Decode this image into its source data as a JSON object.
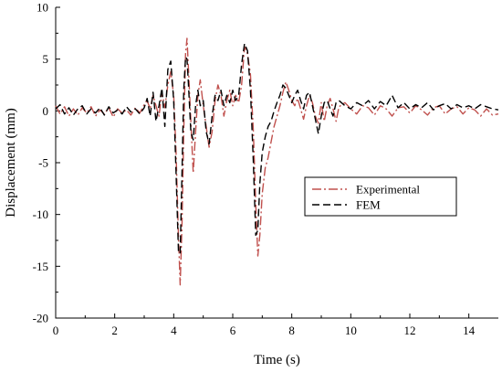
{
  "chart_data": {
    "type": "line",
    "title": "",
    "xlabel": "Time (s)",
    "ylabel": "Displacement (mm)",
    "xlim": [
      0,
      15
    ],
    "ylim": [
      -20,
      10
    ],
    "xticks": [
      0,
      2,
      4,
      6,
      8,
      10,
      12,
      14
    ],
    "yticks": [
      -20,
      -15,
      -10,
      -5,
      0,
      5,
      10
    ],
    "grid": false,
    "legend_position": "center-right",
    "series": [
      {
        "name": "Experimental",
        "color": "#c0504d",
        "dash": "dash-dot",
        "x": [
          0,
          0.15,
          0.3,
          0.45,
          0.6,
          0.75,
          0.9,
          1.05,
          1.2,
          1.35,
          1.5,
          1.65,
          1.8,
          1.95,
          2.1,
          2.25,
          2.4,
          2.55,
          2.7,
          2.85,
          3.0,
          3.1,
          3.2,
          3.3,
          3.4,
          3.5,
          3.6,
          3.7,
          3.8,
          3.9,
          4.0,
          4.08,
          4.16,
          4.22,
          4.28,
          4.34,
          4.4,
          4.45,
          4.5,
          4.58,
          4.66,
          4.74,
          4.82,
          4.9,
          5.0,
          5.1,
          5.2,
          5.3,
          5.4,
          5.5,
          5.6,
          5.7,
          5.8,
          5.9,
          6.0,
          6.1,
          6.2,
          6.3,
          6.4,
          6.5,
          6.6,
          6.7,
          6.78,
          6.85,
          6.92,
          7.0,
          7.1,
          7.2,
          7.3,
          7.4,
          7.5,
          7.6,
          7.7,
          7.8,
          7.9,
          8.0,
          8.1,
          8.2,
          8.3,
          8.4,
          8.5,
          8.6,
          8.7,
          8.8,
          8.9,
          9.0,
          9.1,
          9.2,
          9.3,
          9.4,
          9.5,
          9.6,
          9.8,
          10.0,
          10.2,
          10.4,
          10.6,
          10.8,
          11.0,
          11.2,
          11.4,
          11.6,
          11.8,
          12.0,
          12.2,
          12.4,
          12.6,
          12.8,
          13.0,
          13.2,
          13.4,
          13.6,
          13.8,
          14.0,
          14.2,
          14.4,
          14.6,
          14.8,
          15.0
        ],
        "y": [
          0.5,
          -0.3,
          0.4,
          -0.5,
          0.2,
          -0.4,
          0.3,
          -0.2,
          0.4,
          -0.5,
          0.1,
          -0.3,
          0.3,
          -0.6,
          0.2,
          -0.2,
          0.1,
          -0.4,
          0.3,
          -0.2,
          0.6,
          1.0,
          0.2,
          1.5,
          0.5,
          -0.5,
          1.8,
          0.3,
          2.5,
          3.8,
          1.5,
          -4.0,
          -12.0,
          -16.8,
          -11.0,
          -2.0,
          5.5,
          7.0,
          4.0,
          -1.0,
          -6.0,
          -2.0,
          1.5,
          3.0,
          0.5,
          -1.5,
          -3.5,
          -2.0,
          1.0,
          2.5,
          1.5,
          -0.5,
          1.0,
          2.0,
          0.5,
          1.5,
          0.8,
          2.5,
          6.2,
          5.5,
          3.5,
          -2.0,
          -9.0,
          -14.0,
          -12.0,
          -8.0,
          -5.5,
          -4.5,
          -3.0,
          -1.5,
          -0.5,
          0.5,
          1.8,
          2.8,
          2.0,
          1.0,
          0.5,
          1.2,
          0.2,
          -0.8,
          0.5,
          1.5,
          0.8,
          -0.5,
          -1.2,
          0.8,
          -1.0,
          0.5,
          1.2,
          0.2,
          -1.0,
          0.4,
          0.8,
          0.2,
          -0.3,
          0.5,
          0.3,
          -0.4,
          0.5,
          0.2,
          -0.5,
          0.3,
          0.4,
          -0.2,
          0.5,
          0.1,
          -0.4,
          0.3,
          0.5,
          -0.3,
          0.2,
          0.4,
          -0.3,
          0.3,
          0.1,
          -0.5,
          0.2,
          -0.4,
          -0.3
        ]
      },
      {
        "name": "FEM",
        "color": "#000000",
        "dash": "dash",
        "x": [
          0,
          0.15,
          0.3,
          0.45,
          0.6,
          0.75,
          0.9,
          1.05,
          1.2,
          1.35,
          1.5,
          1.65,
          1.8,
          1.95,
          2.1,
          2.25,
          2.4,
          2.55,
          2.7,
          2.85,
          3.0,
          3.1,
          3.2,
          3.3,
          3.4,
          3.5,
          3.6,
          3.7,
          3.8,
          3.9,
          4.0,
          4.08,
          4.16,
          4.22,
          4.28,
          4.34,
          4.4,
          4.45,
          4.5,
          4.58,
          4.66,
          4.74,
          4.82,
          4.9,
          5.0,
          5.1,
          5.2,
          5.3,
          5.4,
          5.5,
          5.6,
          5.7,
          5.8,
          5.9,
          6.0,
          6.1,
          6.2,
          6.3,
          6.4,
          6.5,
          6.6,
          6.7,
          6.78,
          6.85,
          6.92,
          7.0,
          7.1,
          7.2,
          7.3,
          7.4,
          7.5,
          7.6,
          7.7,
          7.8,
          7.9,
          8.0,
          8.1,
          8.2,
          8.3,
          8.4,
          8.5,
          8.6,
          8.7,
          8.8,
          8.9,
          9.0,
          9.1,
          9.2,
          9.3,
          9.4,
          9.5,
          9.6,
          9.8,
          10.0,
          10.2,
          10.4,
          10.6,
          10.8,
          11.0,
          11.2,
          11.4,
          11.6,
          11.8,
          12.0,
          12.2,
          12.4,
          12.6,
          12.8,
          13.0,
          13.2,
          13.4,
          13.6,
          13.8,
          14.0,
          14.2,
          14.4,
          14.6,
          14.8,
          15.0
        ],
        "y": [
          0.2,
          0.6,
          -0.3,
          0.3,
          -0.4,
          0.2,
          0.5,
          -0.3,
          0.2,
          -0.2,
          0.3,
          -0.4,
          0.4,
          -0.2,
          0.1,
          -0.3,
          0.4,
          -0.1,
          0.2,
          -0.3,
          0.3,
          1.2,
          -0.5,
          1.8,
          -1.0,
          0.5,
          2.2,
          -1.5,
          4.0,
          4.8,
          1.0,
          -6.0,
          -13.5,
          -13.8,
          -6.0,
          2.0,
          5.2,
          5.0,
          2.5,
          -2.0,
          -2.8,
          0.5,
          2.0,
          0.5,
          1.0,
          -2.0,
          -3.2,
          -0.5,
          1.5,
          1.0,
          2.0,
          0.5,
          1.5,
          0.8,
          2.0,
          1.0,
          1.5,
          4.5,
          6.5,
          5.8,
          2.0,
          -5.0,
          -12.0,
          -11.5,
          -7.0,
          -4.0,
          -2.5,
          -1.5,
          -1.0,
          0.0,
          0.8,
          1.5,
          2.5,
          2.2,
          1.5,
          0.8,
          1.5,
          2.0,
          1.0,
          0.2,
          1.5,
          1.8,
          0.5,
          -0.8,
          -2.2,
          -0.5,
          0.8,
          1.0,
          0.2,
          -0.5,
          0.8,
          1.0,
          0.5,
          0.2,
          0.8,
          0.5,
          1.0,
          0.2,
          0.9,
          0.5,
          1.5,
          0.3,
          0.8,
          0.2,
          0.6,
          0.3,
          0.8,
          0.1,
          0.5,
          0.7,
          0.2,
          0.6,
          0.3,
          0.5,
          0.2,
          0.6,
          0.4,
          0.2,
          0.1
        ]
      }
    ]
  }
}
